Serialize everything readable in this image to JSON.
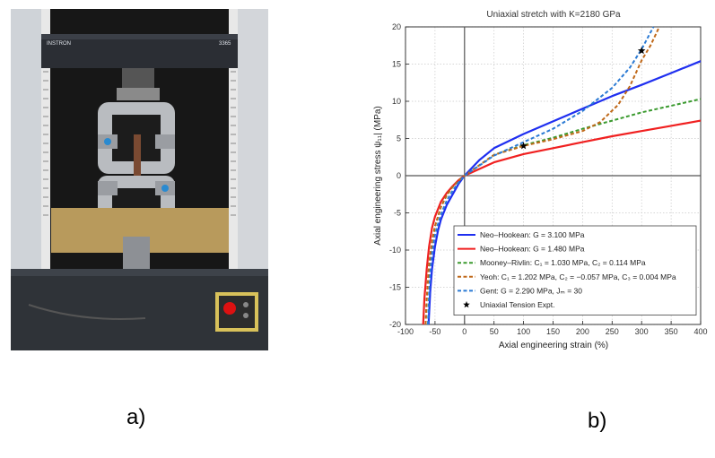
{
  "panels": {
    "a_label": "a)",
    "b_label": "b)"
  },
  "photo": {
    "brand": "INSTRON",
    "model": "3365",
    "description_icon": "tensile-testing-machine"
  },
  "chart_data": {
    "type": "line",
    "title": "Uniaxial stretch with K=2180 GPa",
    "xlabel": "Axial engineering strain (%)",
    "ylabel": "Axial engineering stress ψ₁₁| (MPa)",
    "xlim": [
      -100,
      400
    ],
    "ylim": [
      -20,
      20
    ],
    "xticks": [
      -100,
      -50,
      0,
      50,
      100,
      150,
      200,
      250,
      300,
      350,
      400
    ],
    "yticks": [
      -20,
      -15,
      -10,
      -5,
      0,
      5,
      10,
      15,
      20
    ],
    "grid": true,
    "legend_position": "bottom-left",
    "series": [
      {
        "name": "Neo–Hookean: G = 3.100 MPa",
        "color": "#1f2ff0",
        "dash": "solid",
        "x": [
          -61,
          -58,
          -55,
          -50,
          -45,
          -40,
          -30,
          -20,
          -10,
          0,
          25,
          50,
          100,
          150,
          200,
          250,
          300,
          350,
          400
        ],
        "y": [
          -20,
          -15.5,
          -12.5,
          -9.5,
          -7.4,
          -5.9,
          -3.9,
          -2.5,
          -1.1,
          0,
          2.1,
          3.7,
          5.6,
          7.3,
          9.0,
          10.7,
          12.2,
          13.8,
          15.4
        ]
      },
      {
        "name": "Neo–Hookean: G = 1.480 MPa",
        "color": "#f02020",
        "dash": "solid",
        "x": [
          -70,
          -68,
          -66,
          -64,
          -60,
          -55,
          -50,
          -40,
          -30,
          -20,
          -10,
          0,
          50,
          100,
          150,
          200,
          250,
          300,
          350,
          400
        ],
        "y": [
          -20,
          -16.5,
          -14.5,
          -12.5,
          -9.5,
          -7.0,
          -5.5,
          -3.5,
          -2.3,
          -1.4,
          -0.6,
          0,
          1.8,
          2.9,
          3.7,
          4.5,
          5.3,
          6.0,
          6.7,
          7.4
        ]
      },
      {
        "name": "Mooney–Rivlin: C₁ = 1.030 MPa, C₂ = 0.114 MPa",
        "color": "#3a9a2e",
        "dash": "dashed",
        "x": [
          -66,
          -64,
          -62,
          -60,
          -55,
          -50,
          -40,
          -30,
          -20,
          -10,
          0,
          50,
          100,
          150,
          200,
          250,
          300,
          350,
          400
        ],
        "y": [
          -20,
          -16.5,
          -14.0,
          -12.0,
          -8.8,
          -6.8,
          -4.2,
          -2.6,
          -1.5,
          -0.7,
          0,
          2.8,
          4.1,
          5.1,
          6.3,
          7.4,
          8.5,
          9.4,
          10.3
        ]
      },
      {
        "name": "Yeoh: C₁ = 1.202 MPa, C₂ = −0.057 MPa, C₃ = 0.004 MPa",
        "color": "#c0691a",
        "dash": "dashed",
        "x": [
          -66,
          -64,
          -62,
          -60,
          -55,
          -50,
          -40,
          -30,
          -20,
          -10,
          0,
          50,
          100,
          150,
          200,
          230,
          260,
          280,
          300,
          315,
          330
        ],
        "y": [
          -20,
          -16.5,
          -14.0,
          -12.0,
          -8.8,
          -6.8,
          -4.2,
          -2.6,
          -1.5,
          -0.7,
          0,
          2.8,
          4.0,
          4.9,
          6.0,
          7.2,
          9.5,
          12.0,
          15.5,
          17.5,
          20
        ]
      },
      {
        "name": "Gent: G = 2.290 MPa, Jₘ = 30",
        "color": "#2a7ad4",
        "dash": "dashed",
        "x": [
          -62,
          -60,
          -58,
          -55,
          -50,
          -45,
          -40,
          -30,
          -20,
          -10,
          0,
          50,
          100,
          150,
          200,
          250,
          280,
          300,
          320
        ],
        "y": [
          -20,
          -16.0,
          -13.0,
          -10.5,
          -8.0,
          -6.5,
          -5.2,
          -3.3,
          -2.0,
          -0.9,
          0,
          2.7,
          4.5,
          6.3,
          8.7,
          11.8,
          14.5,
          17.0,
          20
        ]
      }
    ],
    "markers": {
      "name": "Uniaxial Tension Expt.",
      "points": [
        {
          "x": 100,
          "y": 4.0
        },
        {
          "x": 300,
          "y": 16.8
        }
      ]
    }
  }
}
